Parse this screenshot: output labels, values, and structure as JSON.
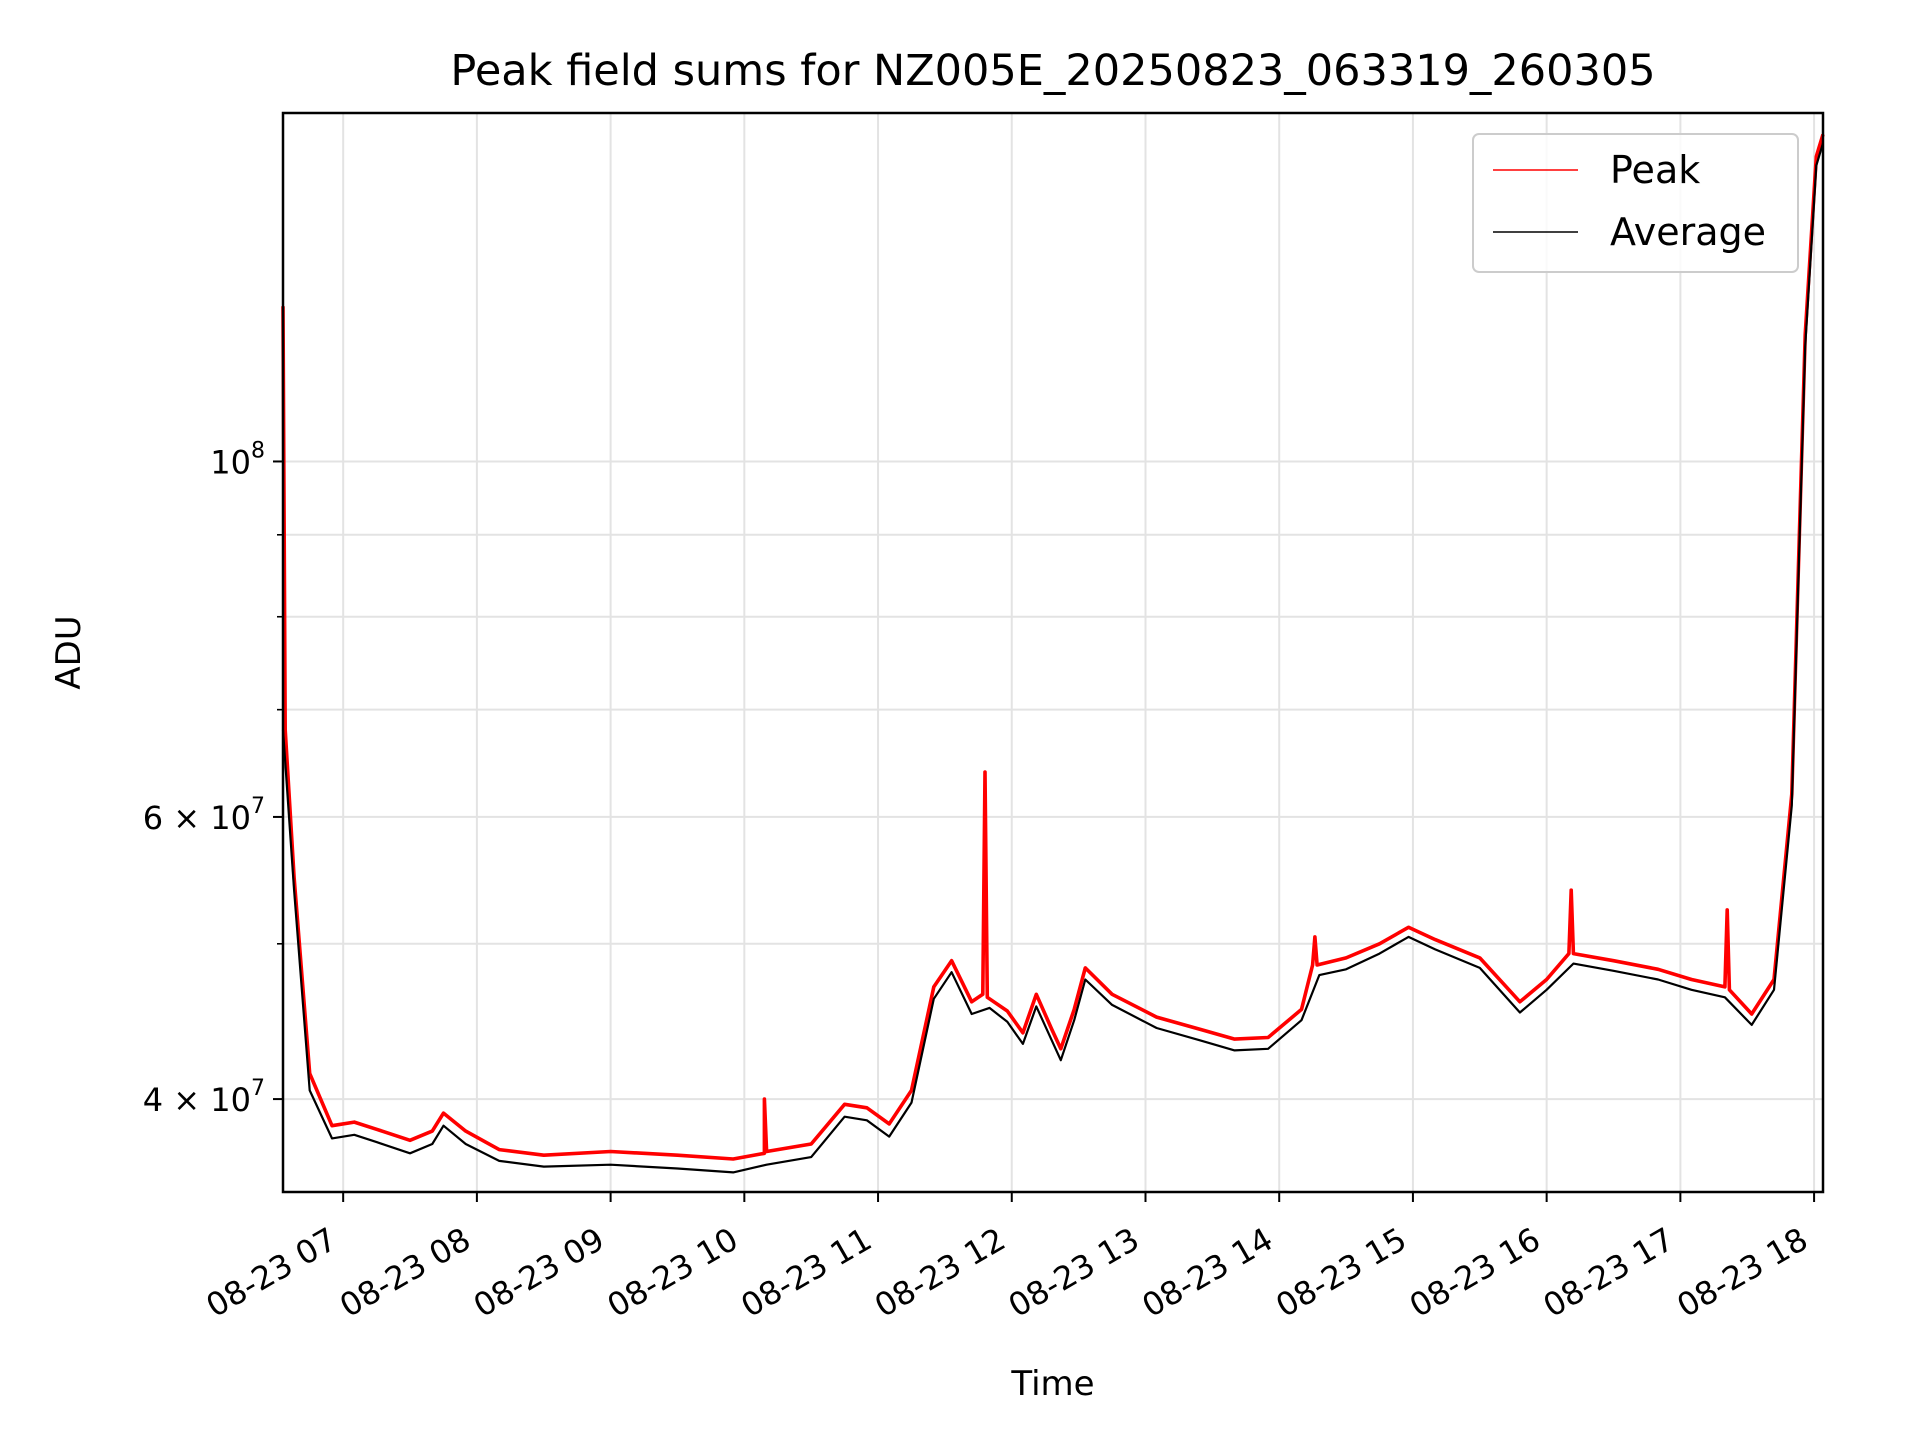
{
  "chart_data": {
    "type": "line",
    "title": "Peak field sums for NZ005E_20250823_063319_260305",
    "xlabel": "Time",
    "ylabel": "ADU",
    "y_scale": "log",
    "ylim": [
      35000000,
      165000000
    ],
    "xlim": [
      "2025-08-23 06:33",
      "2025-08-23 18:04"
    ],
    "grid": true,
    "legend_placement": "top-right",
    "x_ticks": [
      {
        "t": "2025-08-23 07:00",
        "label": "08-23 07"
      },
      {
        "t": "2025-08-23 08:00",
        "label": "08-23 08"
      },
      {
        "t": "2025-08-23 09:00",
        "label": "08-23 09"
      },
      {
        "t": "2025-08-23 10:00",
        "label": "08-23 10"
      },
      {
        "t": "2025-08-23 11:00",
        "label": "08-23 11"
      },
      {
        "t": "2025-08-23 12:00",
        "label": "08-23 12"
      },
      {
        "t": "2025-08-23 13:00",
        "label": "08-23 13"
      },
      {
        "t": "2025-08-23 14:00",
        "label": "08-23 14"
      },
      {
        "t": "2025-08-23 15:00",
        "label": "08-23 15"
      },
      {
        "t": "2025-08-23 16:00",
        "label": "08-23 16"
      },
      {
        "t": "2025-08-23 17:00",
        "label": "08-23 17"
      },
      {
        "t": "2025-08-23 18:00",
        "label": "08-23 18"
      }
    ],
    "y_ticks_major": [
      {
        "v": 40000000,
        "mant": "4",
        "exp": "7"
      },
      {
        "v": 60000000,
        "mant": "6",
        "exp": "7"
      },
      {
        "v": 100000000,
        "mant": "",
        "exp": "8"
      }
    ],
    "y_ticks_minor": [
      50000000,
      70000000,
      80000000,
      90000000
    ],
    "series": [
      {
        "name": "Peak",
        "color": "#ff0000",
        "points": [
          [
            "2025-08-23 06:33",
            125000000
          ],
          [
            "2025-08-23 06:34",
            68000000
          ],
          [
            "2025-08-23 06:38",
            55000000
          ],
          [
            "2025-08-23 06:45",
            41500000
          ],
          [
            "2025-08-23 06:55",
            38500000
          ],
          [
            "2025-08-23 07:05",
            38700000
          ],
          [
            "2025-08-23 07:15",
            38300000
          ],
          [
            "2025-08-23 07:30",
            37700000
          ],
          [
            "2025-08-23 07:40",
            38200000
          ],
          [
            "2025-08-23 07:45",
            39200000
          ],
          [
            "2025-08-23 07:55",
            38200000
          ],
          [
            "2025-08-23 08:10",
            37200000
          ],
          [
            "2025-08-23 08:30",
            36900000
          ],
          [
            "2025-08-23 09:00",
            37100000
          ],
          [
            "2025-08-23 09:30",
            36900000
          ],
          [
            "2025-08-23 09:55",
            36700000
          ],
          [
            "2025-08-23 10:09",
            37000000
          ],
          [
            "2025-08-23 10:09",
            40000000
          ],
          [
            "2025-08-23 10:10",
            37100000
          ],
          [
            "2025-08-23 10:30",
            37500000
          ],
          [
            "2025-08-23 10:45",
            39700000
          ],
          [
            "2025-08-23 10:55",
            39500000
          ],
          [
            "2025-08-23 11:05",
            38600000
          ],
          [
            "2025-08-23 11:15",
            40500000
          ],
          [
            "2025-08-23 11:25",
            47000000
          ],
          [
            "2025-08-23 11:33",
            48800000
          ],
          [
            "2025-08-23 11:42",
            46000000
          ],
          [
            "2025-08-23 11:47",
            46500000
          ],
          [
            "2025-08-23 11:48",
            64000000
          ],
          [
            "2025-08-23 11:49",
            46300000
          ],
          [
            "2025-08-23 11:58",
            45400000
          ],
          [
            "2025-08-23 12:05",
            44000000
          ],
          [
            "2025-08-23 12:11",
            46500000
          ],
          [
            "2025-08-23 12:18",
            44200000
          ],
          [
            "2025-08-23 12:22",
            43000000
          ],
          [
            "2025-08-23 12:28",
            45500000
          ],
          [
            "2025-08-23 12:33",
            48300000
          ],
          [
            "2025-08-23 12:45",
            46500000
          ],
          [
            "2025-08-23 13:05",
            45000000
          ],
          [
            "2025-08-23 13:25",
            44200000
          ],
          [
            "2025-08-23 13:40",
            43600000
          ],
          [
            "2025-08-23 13:55",
            43700000
          ],
          [
            "2025-08-23 14:10",
            45500000
          ],
          [
            "2025-08-23 14:15",
            48500000
          ],
          [
            "2025-08-23 14:16",
            50500000
          ],
          [
            "2025-08-23 14:17",
            48500000
          ],
          [
            "2025-08-23 14:30",
            49000000
          ],
          [
            "2025-08-23 14:45",
            50000000
          ],
          [
            "2025-08-23 14:58",
            51200000
          ],
          [
            "2025-08-23 15:10",
            50300000
          ],
          [
            "2025-08-23 15:30",
            49000000
          ],
          [
            "2025-08-23 15:48",
            46000000
          ],
          [
            "2025-08-23 16:00",
            47500000
          ],
          [
            "2025-08-23 16:10",
            49300000
          ],
          [
            "2025-08-23 16:11",
            54000000
          ],
          [
            "2025-08-23 16:12",
            49300000
          ],
          [
            "2025-08-23 16:30",
            48800000
          ],
          [
            "2025-08-23 16:50",
            48200000
          ],
          [
            "2025-08-23 17:05",
            47500000
          ],
          [
            "2025-08-23 17:20",
            47000000
          ],
          [
            "2025-08-23 17:21",
            52500000
          ],
          [
            "2025-08-23 17:22",
            46800000
          ],
          [
            "2025-08-23 17:32",
            45200000
          ],
          [
            "2025-08-23 17:42",
            47500000
          ],
          [
            "2025-08-23 17:50",
            62000000
          ],
          [
            "2025-08-23 17:56",
            120000000
          ],
          [
            "2025-08-23 18:01",
            155000000
          ],
          [
            "2025-08-23 18:04",
            160000000
          ]
        ]
      },
      {
        "name": "Average",
        "color": "#000000",
        "points": [
          [
            "2025-08-23 06:33",
            68000000
          ],
          [
            "2025-08-23 06:38",
            54000000
          ],
          [
            "2025-08-23 06:45",
            40500000
          ],
          [
            "2025-08-23 06:55",
            37800000
          ],
          [
            "2025-08-23 07:05",
            38000000
          ],
          [
            "2025-08-23 07:15",
            37600000
          ],
          [
            "2025-08-23 07:30",
            37000000
          ],
          [
            "2025-08-23 07:40",
            37500000
          ],
          [
            "2025-08-23 07:45",
            38500000
          ],
          [
            "2025-08-23 07:55",
            37500000
          ],
          [
            "2025-08-23 08:10",
            36600000
          ],
          [
            "2025-08-23 08:30",
            36300000
          ],
          [
            "2025-08-23 09:00",
            36400000
          ],
          [
            "2025-08-23 09:30",
            36200000
          ],
          [
            "2025-08-23 09:55",
            36000000
          ],
          [
            "2025-08-23 10:10",
            36400000
          ],
          [
            "2025-08-23 10:30",
            36800000
          ],
          [
            "2025-08-23 10:45",
            39000000
          ],
          [
            "2025-08-23 10:55",
            38800000
          ],
          [
            "2025-08-23 11:05",
            37900000
          ],
          [
            "2025-08-23 11:15",
            39800000
          ],
          [
            "2025-08-23 11:25",
            46200000
          ],
          [
            "2025-08-23 11:33",
            48000000
          ],
          [
            "2025-08-23 11:42",
            45200000
          ],
          [
            "2025-08-23 11:50",
            45600000
          ],
          [
            "2025-08-23 11:58",
            44700000
          ],
          [
            "2025-08-23 12:05",
            43300000
          ],
          [
            "2025-08-23 12:11",
            45700000
          ],
          [
            "2025-08-23 12:18",
            43500000
          ],
          [
            "2025-08-23 12:22",
            42300000
          ],
          [
            "2025-08-23 12:28",
            44800000
          ],
          [
            "2025-08-23 12:33",
            47500000
          ],
          [
            "2025-08-23 12:45",
            45800000
          ],
          [
            "2025-08-23 13:05",
            44300000
          ],
          [
            "2025-08-23 13:25",
            43500000
          ],
          [
            "2025-08-23 13:40",
            42900000
          ],
          [
            "2025-08-23 13:55",
            43000000
          ],
          [
            "2025-08-23 14:10",
            44800000
          ],
          [
            "2025-08-23 14:18",
            47800000
          ],
          [
            "2025-08-23 14:30",
            48200000
          ],
          [
            "2025-08-23 14:45",
            49300000
          ],
          [
            "2025-08-23 14:58",
            50500000
          ],
          [
            "2025-08-23 15:10",
            49600000
          ],
          [
            "2025-08-23 15:30",
            48300000
          ],
          [
            "2025-08-23 15:48",
            45300000
          ],
          [
            "2025-08-23 16:00",
            46800000
          ],
          [
            "2025-08-23 16:12",
            48600000
          ],
          [
            "2025-08-23 16:30",
            48100000
          ],
          [
            "2025-08-23 16:50",
            47500000
          ],
          [
            "2025-08-23 17:05",
            46800000
          ],
          [
            "2025-08-23 17:20",
            46300000
          ],
          [
            "2025-08-23 17:32",
            44500000
          ],
          [
            "2025-08-23 17:42",
            46800000
          ],
          [
            "2025-08-23 17:50",
            61000000
          ],
          [
            "2025-08-23 17:56",
            118000000
          ],
          [
            "2025-08-23 18:01",
            153000000
          ],
          [
            "2025-08-23 18:04",
            158000000
          ]
        ]
      }
    ]
  }
}
